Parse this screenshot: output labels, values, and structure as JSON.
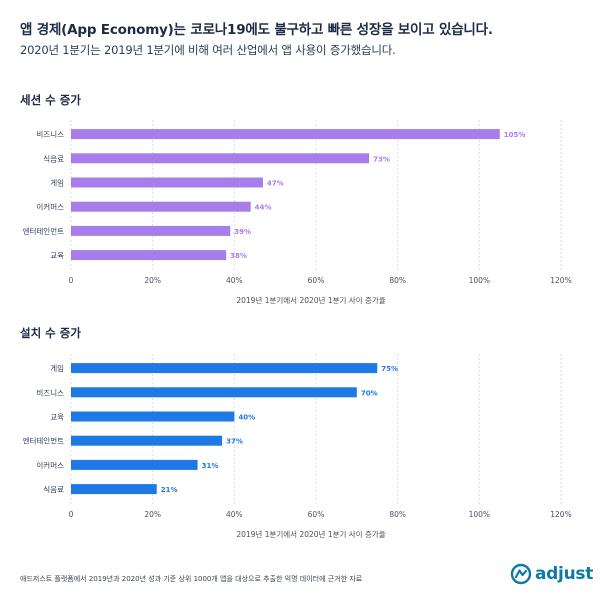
{
  "header": {
    "title": "앱 경제(App Economy)는 코로나19에도 불구하고 빠른 성장을 보이고 있습니다.",
    "subtitle": "2020년 1분기는 2019년 1분기에 비해 여러 산업에서 앱 사용이 증가했습니다."
  },
  "colors": {
    "purple": "#a77ee9",
    "blue": "#1e78e6",
    "grid": "#d9dde6",
    "axis_text": "#4a4f5c"
  },
  "footer": {
    "note": "애드저스트 플랫폼에서 2019년과 2020년 성과 기준 상위 1000개 앱을 대상으로 추출한 익명 데이터에 근거한 자료"
  },
  "logo": {
    "text": "adjust",
    "icon": "adjust-logo-icon"
  },
  "chart_data": [
    {
      "type": "bar",
      "orientation": "horizontal",
      "title": "세션 수 증가",
      "xlabel": "2019년 1분기에서 2020년 1분기 사이 증가율",
      "categories": [
        "비즈니스",
        "식음료",
        "게임",
        "이커머스",
        "엔터테인먼트",
        "교육"
      ],
      "values": [
        105,
        73,
        47,
        44,
        39,
        38
      ],
      "value_labels": [
        "105%",
        "73%",
        "47%",
        "44%",
        "39%",
        "38%"
      ],
      "xlim": [
        0,
        120
      ],
      "ticks": [
        "0",
        "20%",
        "40%",
        "60%",
        "80%",
        "100%",
        "120%"
      ],
      "color": "#a77ee9",
      "grid": true
    },
    {
      "type": "bar",
      "orientation": "horizontal",
      "title": "설치 수 증가",
      "xlabel": "2019년 1분기에서 2020년 1분기 사이 증가율",
      "categories": [
        "게임",
        "비즈니스",
        "교육",
        "엔터테인먼트",
        "이커머스",
        "식음료"
      ],
      "values": [
        75,
        70,
        40,
        37,
        31,
        21
      ],
      "value_labels": [
        "75%",
        "70%",
        "40%",
        "37%",
        "31%",
        "21%"
      ],
      "xlim": [
        0,
        120
      ],
      "ticks": [
        "0",
        "20%",
        "40%",
        "60%",
        "80%",
        "100%",
        "120%"
      ],
      "color": "#1e78e6",
      "grid": true
    }
  ]
}
